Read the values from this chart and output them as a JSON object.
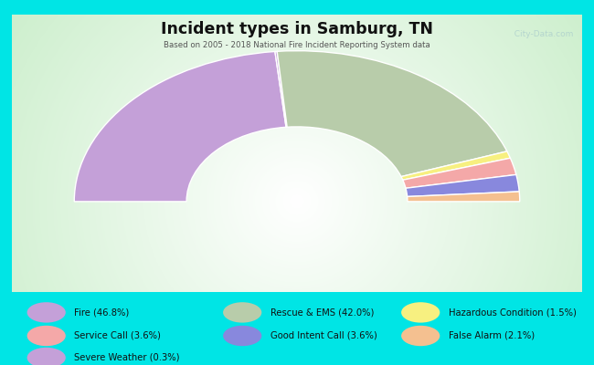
{
  "title": "Incident types in Samburg, TN",
  "subtitle": "Based on 2005 - 2018 National Fire Incident Reporting System data",
  "background_outer": "#00e5e5",
  "segments": [
    {
      "label": "Fire",
      "pct": 46.8,
      "color": "#c4a0d8"
    },
    {
      "label": "Severe Weather",
      "pct": 0.3,
      "color": "#c4a0d8"
    },
    {
      "label": "Rescue & EMS",
      "pct": 42.0,
      "color": "#b8ccaa"
    },
    {
      "label": "Hazardous Condition",
      "pct": 1.5,
      "color": "#f7f080"
    },
    {
      "label": "Service Call",
      "pct": 3.6,
      "color": "#f4a8a8"
    },
    {
      "label": "Good Intent Call",
      "pct": 3.6,
      "color": "#8888dd"
    },
    {
      "label": "False Alarm",
      "pct": 2.1,
      "color": "#f4c090"
    }
  ],
  "legend_items": [
    {
      "label": "Fire (46.8%)",
      "color": "#c4a0d8"
    },
    {
      "label": "Service Call (3.6%)",
      "color": "#f4a8a8"
    },
    {
      "label": "Severe Weather (0.3%)",
      "color": "#c4a0d8"
    },
    {
      "label": "Rescue & EMS (42.0%)",
      "color": "#b8ccaa"
    },
    {
      "label": "Good Intent Call (3.6%)",
      "color": "#8888dd"
    },
    {
      "label": "Hazardous Condition (1.5%)",
      "color": "#f7f080"
    },
    {
      "label": "False Alarm (2.1%)",
      "color": "#f4c090"
    }
  ],
  "watermark": "  City-Data.com"
}
